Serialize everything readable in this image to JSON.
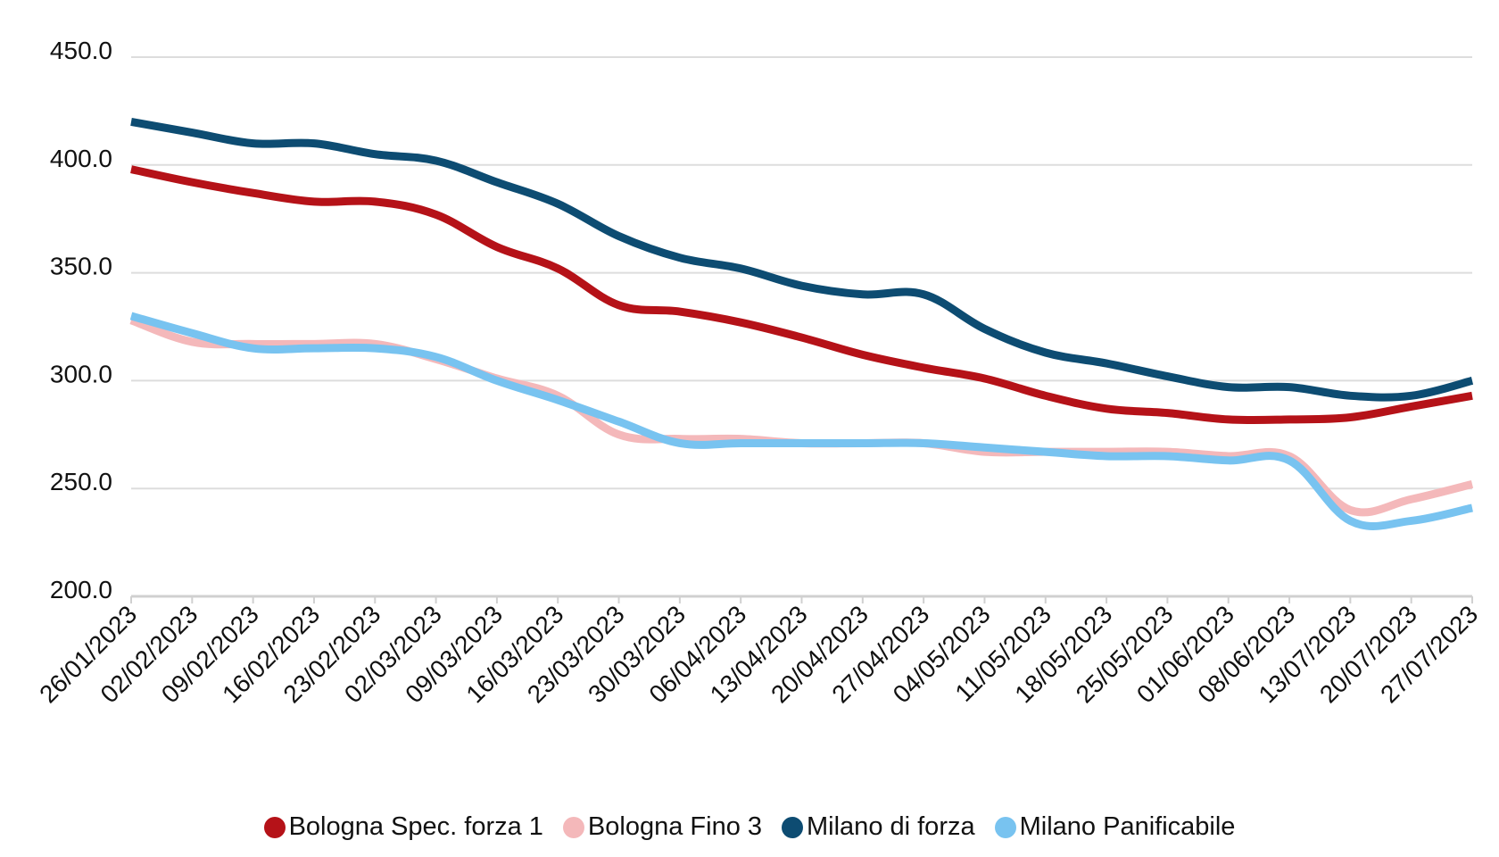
{
  "chart_data": {
    "type": "line",
    "title": "",
    "xlabel": "",
    "ylabel": "",
    "ylim": [
      200,
      450
    ],
    "yticks": [
      "200.0",
      "250.0",
      "300.0",
      "350.0",
      "400.0",
      "450.0"
    ],
    "grid": true,
    "legend_position": "bottom",
    "categories": [
      "26/01/2023",
      "02/02/2023",
      "09/02/2023",
      "16/02/2023",
      "23/02/2023",
      "02/03/2023",
      "09/03/2023",
      "16/03/2023",
      "23/03/2023",
      "30/03/2023",
      "06/04/2023",
      "13/04/2023",
      "20/04/2023",
      "27/04/2023",
      "04/05/2023",
      "11/05/2023",
      "18/05/2023",
      "25/05/2023",
      "01/06/2023",
      "08/06/2023",
      "13/07/2023",
      "20/07/2023",
      "27/07/2023"
    ],
    "series": [
      {
        "name": "Bologna Spec. forza 1",
        "color": "#b51218",
        "values": [
          398,
          392,
          387,
          383,
          383,
          377,
          362,
          352,
          335,
          332,
          327,
          320,
          312,
          306,
          301,
          293,
          287,
          285,
          282,
          282,
          283,
          288,
          293
        ]
      },
      {
        "name": "Bologna Fino 3",
        "color": "#f4b8ba",
        "values": [
          328,
          318,
          317,
          317,
          317,
          310,
          301,
          293,
          275,
          273,
          273,
          271,
          271,
          271,
          267,
          267,
          267,
          267,
          265,
          265,
          240,
          245,
          252
        ]
      },
      {
        "name": "Milano di forza",
        "color": "#0d4c72",
        "values": [
          420,
          415,
          410,
          410,
          405,
          402,
          392,
          382,
          367,
          357,
          352,
          344,
          340,
          340,
          324,
          313,
          308,
          302,
          297,
          297,
          293,
          293,
          300
        ]
      },
      {
        "name": "Milano Panificabile",
        "color": "#78c3f0",
        "values": [
          330,
          322,
          315,
          315,
          315,
          311,
          300,
          291,
          281,
          271,
          271,
          271,
          271,
          271,
          269,
          267,
          265,
          265,
          263,
          263,
          235,
          235,
          241
        ]
      }
    ]
  }
}
